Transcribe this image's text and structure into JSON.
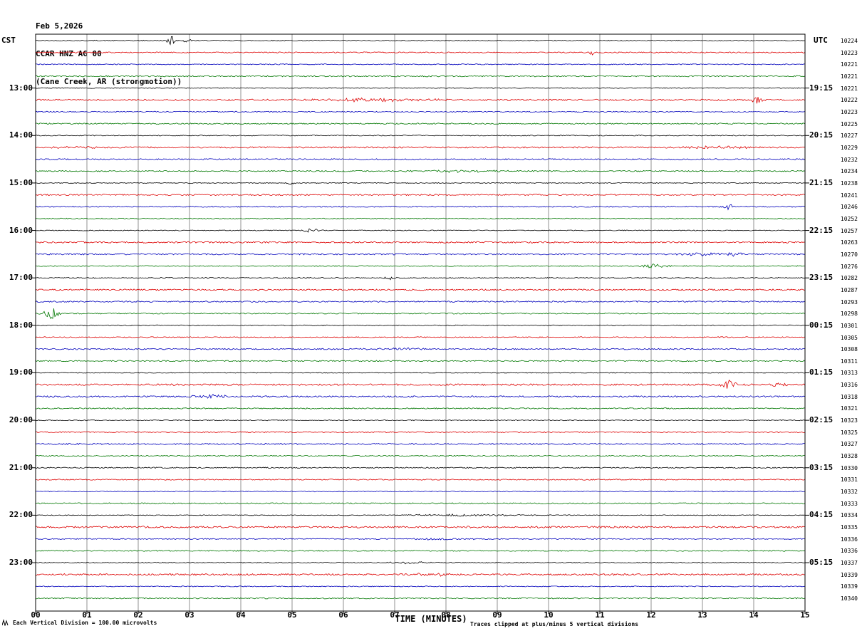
{
  "header": {
    "date": "Feb 5,2026",
    "station": "CCAR HNZ AG 00",
    "location": "(Cane Creek, AR (strongmotion))"
  },
  "axes": {
    "left_header": "CST",
    "right_header": "UTC",
    "x_title": "TIME (MINUTES)",
    "x_ticks": [
      "00",
      "01",
      "02",
      "03",
      "04",
      "05",
      "06",
      "07",
      "08",
      "09",
      "10",
      "11",
      "12",
      "13",
      "14",
      "15"
    ],
    "footer_left": "Each Vertical Division =  100.00 microvolts",
    "footer_right": "Traces clipped at plus/minus 5 vertical divisions"
  },
  "chart_data": {
    "type": "line",
    "subtype": "seismogram-helicorder",
    "title": "CCAR HNZ AG 00 (Cane Creek, AR (strongmotion)) Feb 5,2026",
    "xlabel": "TIME (MINUTES)",
    "x_range": [
      0,
      15
    ],
    "minutes_per_row": 15,
    "rows": 48,
    "colors_cycle": [
      "#000000",
      "#dd0000",
      "#0000bb",
      "#007700"
    ],
    "clip_divisions": 5,
    "microvolts_per_division": 100.0,
    "noise_seed": 42,
    "left_labels": [
      {
        "row": 4,
        "label": "13:00"
      },
      {
        "row": 8,
        "label": "14:00"
      },
      {
        "row": 12,
        "label": "15:00"
      },
      {
        "row": 16,
        "label": "16:00"
      },
      {
        "row": 20,
        "label": "17:00"
      },
      {
        "row": 24,
        "label": "18:00"
      },
      {
        "row": 28,
        "label": "19:00"
      },
      {
        "row": 32,
        "label": "20:00"
      },
      {
        "row": 36,
        "label": "21:00"
      },
      {
        "row": 40,
        "label": "22:00"
      },
      {
        "row": 44,
        "label": "23:00"
      }
    ],
    "right_labels": [
      {
        "row": 4,
        "label": "19:15"
      },
      {
        "row": 8,
        "label": "20:15"
      },
      {
        "row": 12,
        "label": "21:15"
      },
      {
        "row": 16,
        "label": "22:15"
      },
      {
        "row": 20,
        "label": "23:15"
      },
      {
        "row": 24,
        "label": "00:15"
      },
      {
        "row": 28,
        "label": "01:15"
      },
      {
        "row": 32,
        "label": "02:15"
      },
      {
        "row": 36,
        "label": "03:15"
      },
      {
        "row": 40,
        "label": "04:15"
      },
      {
        "row": 44,
        "label": "05:15"
      }
    ],
    "trace_numbers": [
      "10224",
      "10223",
      "10221",
      "10221",
      "10221",
      "10222",
      "10223",
      "10225",
      "10227",
      "10229",
      "10232",
      "10234",
      "10238",
      "10241",
      "10246",
      "10252",
      "10257",
      "10263",
      "10270",
      "10276",
      "10282",
      "10287",
      "10293",
      "10298",
      "10301",
      "10305",
      "10308",
      "10311",
      "10313",
      "10316",
      "10318",
      "10321",
      "10323",
      "10325",
      "10327",
      "10328",
      "10330",
      "10331",
      "10332",
      "10333",
      "10334",
      "10335",
      "10336",
      "10336",
      "10337",
      "10339",
      "10339",
      "10340"
    ],
    "events": [
      {
        "row": 0,
        "m": 2.65,
        "a": 6,
        "w": 0.06
      },
      {
        "row": 0,
        "m": 2.95,
        "a": 4,
        "w": 0.05
      },
      {
        "row": 1,
        "m": 10.85,
        "a": 3,
        "w": 0.05
      },
      {
        "row": 5,
        "m": 6.5,
        "a": 2.2,
        "w": 0.9
      },
      {
        "row": 5,
        "m": 14.05,
        "a": 5,
        "w": 0.07
      },
      {
        "row": 9,
        "m": 0.8,
        "a": 1.5,
        "w": 0.4
      },
      {
        "row": 9,
        "m": 13.2,
        "a": 1.8,
        "w": 0.5
      },
      {
        "row": 11,
        "m": 8.3,
        "a": 1.2,
        "w": 0.8
      },
      {
        "row": 12,
        "m": 5.0,
        "a": 2.5,
        "w": 0.07
      },
      {
        "row": 14,
        "m": 13.5,
        "a": 4.5,
        "w": 0.08
      },
      {
        "row": 16,
        "m": 5.35,
        "a": 2.5,
        "w": 0.12
      },
      {
        "row": 18,
        "m": 12.95,
        "a": 2,
        "w": 0.3
      },
      {
        "row": 18,
        "m": 13.6,
        "a": 2.5,
        "w": 0.12
      },
      {
        "row": 19,
        "m": 12.05,
        "a": 3,
        "w": 0.2
      },
      {
        "row": 20,
        "m": 6.9,
        "a": 2.2,
        "w": 0.08
      },
      {
        "row": 23,
        "m": 0.3,
        "a": 8,
        "w": 0.1
      },
      {
        "row": 26,
        "m": 7.0,
        "a": 1.2,
        "w": 0.5
      },
      {
        "row": 29,
        "m": 13.5,
        "a": 8,
        "w": 0.1
      },
      {
        "row": 29,
        "m": 14.45,
        "a": 2.5,
        "w": 0.15
      },
      {
        "row": 30,
        "m": 3.45,
        "a": 2.5,
        "w": 0.25
      },
      {
        "row": 40,
        "m": 8.3,
        "a": 1.3,
        "w": 0.8
      },
      {
        "row": 42,
        "m": 8.0,
        "a": 1.2,
        "w": 0.6
      },
      {
        "row": 44,
        "m": 7.3,
        "a": 1.5,
        "w": 0.3
      },
      {
        "row": 45,
        "m": 7.75,
        "a": 2.2,
        "w": 0.25
      }
    ]
  }
}
